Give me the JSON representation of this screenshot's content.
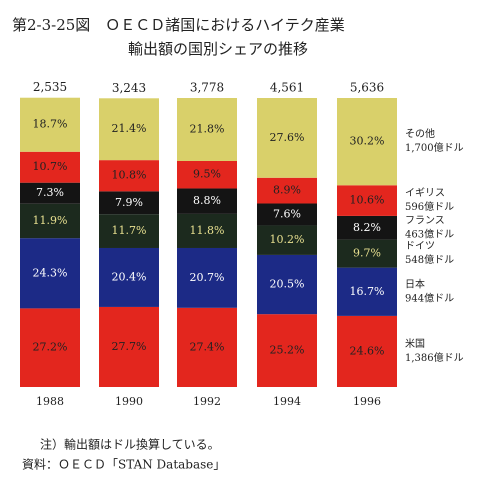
{
  "chart_data": {
    "type": "stacked_bar",
    "title": "第2-3-25図　ＯＥＣＤ諸国におけるハイテク産業",
    "subtitle": "輸出額の国別シェアの推移",
    "categories": [
      "1988",
      "1990",
      "1992",
      "1994",
      "1996"
    ],
    "totals": [
      {
        "value": 2535,
        "label": "2,535"
      },
      {
        "value": 3243,
        "label": "3,243"
      },
      {
        "value": 3778,
        "label": "3,778"
      },
      {
        "value": 4561,
        "label": "4,561"
      },
      {
        "value": 5636,
        "label": "5,636"
      }
    ],
    "ylim": [
      0,
      100
    ],
    "series": [
      {
        "name": "米国",
        "note": "1,386億ドル",
        "color": "#e3261e",
        "text_color": "#222",
        "values": [
          27.2,
          27.7,
          27.4,
          25.2,
          24.6
        ],
        "value_labels": [
          "27.2%",
          "27.7%",
          "27.4%",
          "25.2%",
          "24.6%"
        ]
      },
      {
        "name": "日本",
        "note": "944億ドル",
        "color": "#1c2a86",
        "text_color": "#fff",
        "values": [
          24.3,
          20.4,
          20.7,
          20.5,
          16.7
        ],
        "value_labels": [
          "24.3%",
          "20.4%",
          "20.7%",
          "20.5%",
          "16.7%"
        ]
      },
      {
        "name": "ドイツ",
        "note": "548億ドル",
        "color": "#1c2a1e",
        "text_color": "#e8e090",
        "values": [
          11.9,
          11.7,
          11.8,
          10.2,
          9.7
        ],
        "value_labels": [
          "11.9%",
          "11.7%",
          "11.8%",
          "10.2%",
          "9.7%"
        ]
      },
      {
        "name": "フランス",
        "note": "463億ドル",
        "color": "#141414",
        "text_color": "#fff",
        "values": [
          7.3,
          7.9,
          8.8,
          7.6,
          8.2
        ],
        "value_labels": [
          "7.3%",
          "7.9%",
          "8.8%",
          "7.6%",
          "8.2%"
        ]
      },
      {
        "name": "イギリス",
        "note": "596億ドル",
        "color": "#e3261e",
        "text_color": "#222",
        "values": [
          10.7,
          10.8,
          9.5,
          8.9,
          10.6
        ],
        "value_labels": [
          "10.7%",
          "10.8%",
          "9.5%",
          "8.9%",
          "10.6%"
        ]
      },
      {
        "name": "その他",
        "note": "1,700億ドル",
        "color": "#d9d06a",
        "text_color": "#222",
        "values": [
          18.7,
          21.4,
          21.8,
          27.6,
          30.2
        ],
        "value_labels": [
          "18.7%",
          "21.4%",
          "21.8%",
          "27.6%",
          "30.2%"
        ]
      }
    ],
    "footnotes": [
      "注）輸出額はドル換算している。",
      "資料：ＯＥＣＤ「STAN Database」"
    ]
  }
}
